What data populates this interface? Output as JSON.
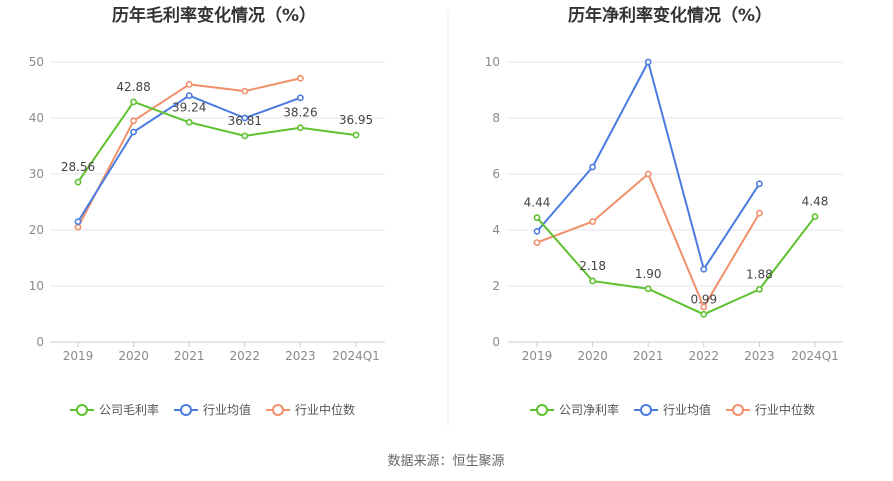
{
  "source": "数据来源：恒生聚源",
  "colors": {
    "company": "#5ec22f",
    "industry_avg": "#4a7be0",
    "industry_median": "#f0906a",
    "grid": "#e6e6ee",
    "axis": "#cccccc"
  },
  "chart_data": [
    {
      "type": "line",
      "title": "历年毛利率变化情况（%）",
      "categories": [
        "2019",
        "2020",
        "2021",
        "2022",
        "2023",
        "2024Q1"
      ],
      "ylim": [
        0,
        50
      ],
      "yticks": [
        0,
        10,
        20,
        30,
        40,
        50
      ],
      "grid": true,
      "legend_position": "bottom",
      "series": [
        {
          "name": "公司毛利率",
          "color_key": "company",
          "values": [
            28.56,
            42.88,
            39.24,
            36.81,
            38.26,
            36.95
          ],
          "labels": [
            "28.56",
            "42.88",
            "39.24",
            "36.81",
            "38.26",
            "36.95"
          ]
        },
        {
          "name": "行业均值",
          "color_key": "industry_avg",
          "values": [
            21.5,
            37.5,
            44.0,
            40.0,
            43.6,
            null
          ]
        },
        {
          "name": "行业中位数",
          "color_key": "industry_median",
          "values": [
            20.5,
            39.5,
            46.0,
            44.8,
            47.1,
            null
          ]
        }
      ]
    },
    {
      "type": "line",
      "title": "历年净利率变化情况（%）",
      "categories": [
        "2019",
        "2020",
        "2021",
        "2022",
        "2023",
        "2024Q1"
      ],
      "ylim": [
        0,
        10
      ],
      "yticks": [
        0,
        2,
        4,
        6,
        8,
        10
      ],
      "grid": true,
      "legend_position": "bottom",
      "series": [
        {
          "name": "公司净利率",
          "color_key": "company",
          "values": [
            4.44,
            2.18,
            1.9,
            0.99,
            1.88,
            4.48
          ],
          "labels": [
            "4.44",
            "2.18",
            "1.90",
            "0.99",
            "1.88",
            "4.48"
          ]
        },
        {
          "name": "行业均值",
          "color_key": "industry_avg",
          "values": [
            3.95,
            6.25,
            10.0,
            2.6,
            5.65,
            null
          ]
        },
        {
          "name": "行业中位数",
          "color_key": "industry_median",
          "values": [
            3.55,
            4.3,
            6.0,
            1.25,
            4.6,
            null
          ]
        }
      ]
    }
  ]
}
